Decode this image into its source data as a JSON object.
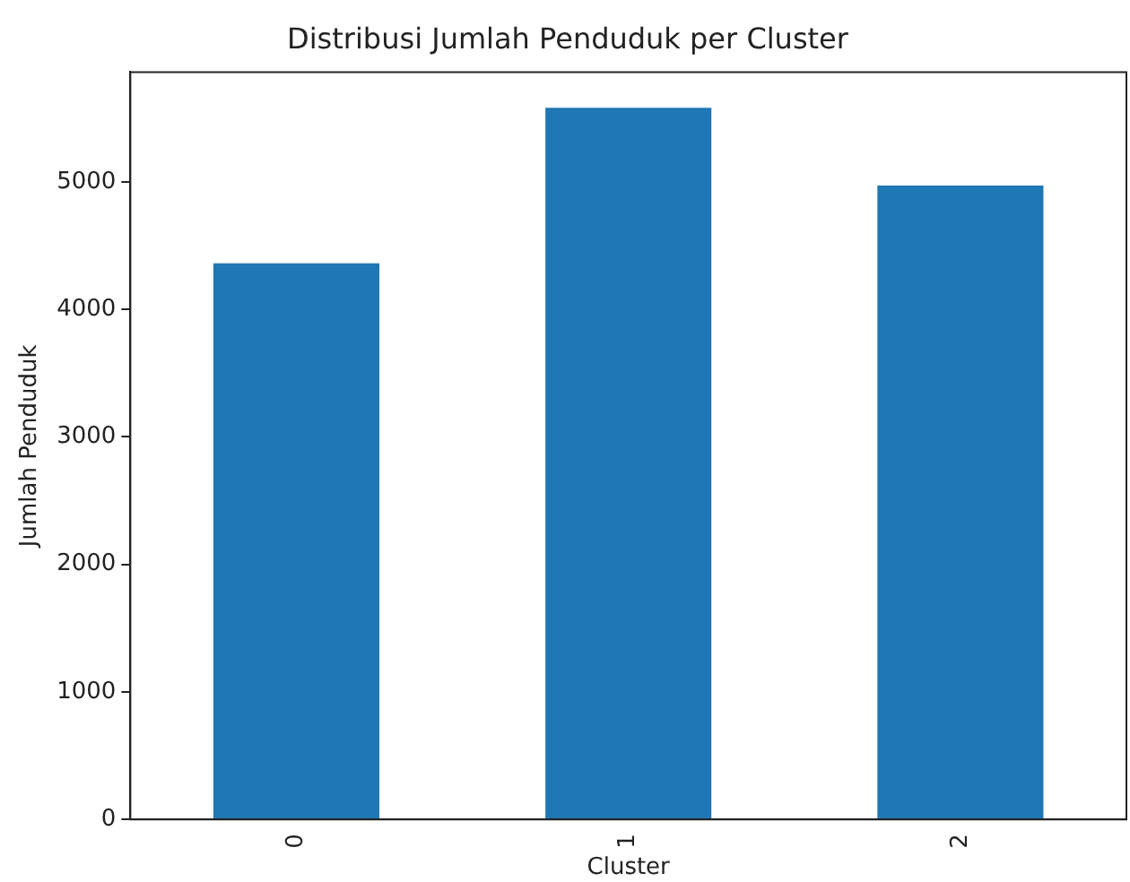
{
  "chart_data": {
    "type": "bar",
    "title": "Distribusi Jumlah Penduduk per Cluster",
    "xlabel": "Cluster",
    "ylabel": "Jumlah Penduduk",
    "categories": [
      "0",
      "1",
      "2"
    ],
    "values": [
      4360,
      5580,
      4970
    ],
    "color": "#1f77b4",
    "ylim": [
      0,
      5860
    ],
    "yticks": [
      0,
      1000,
      2000,
      3000,
      4000,
      5000
    ],
    "grid": false,
    "legend": false
  }
}
